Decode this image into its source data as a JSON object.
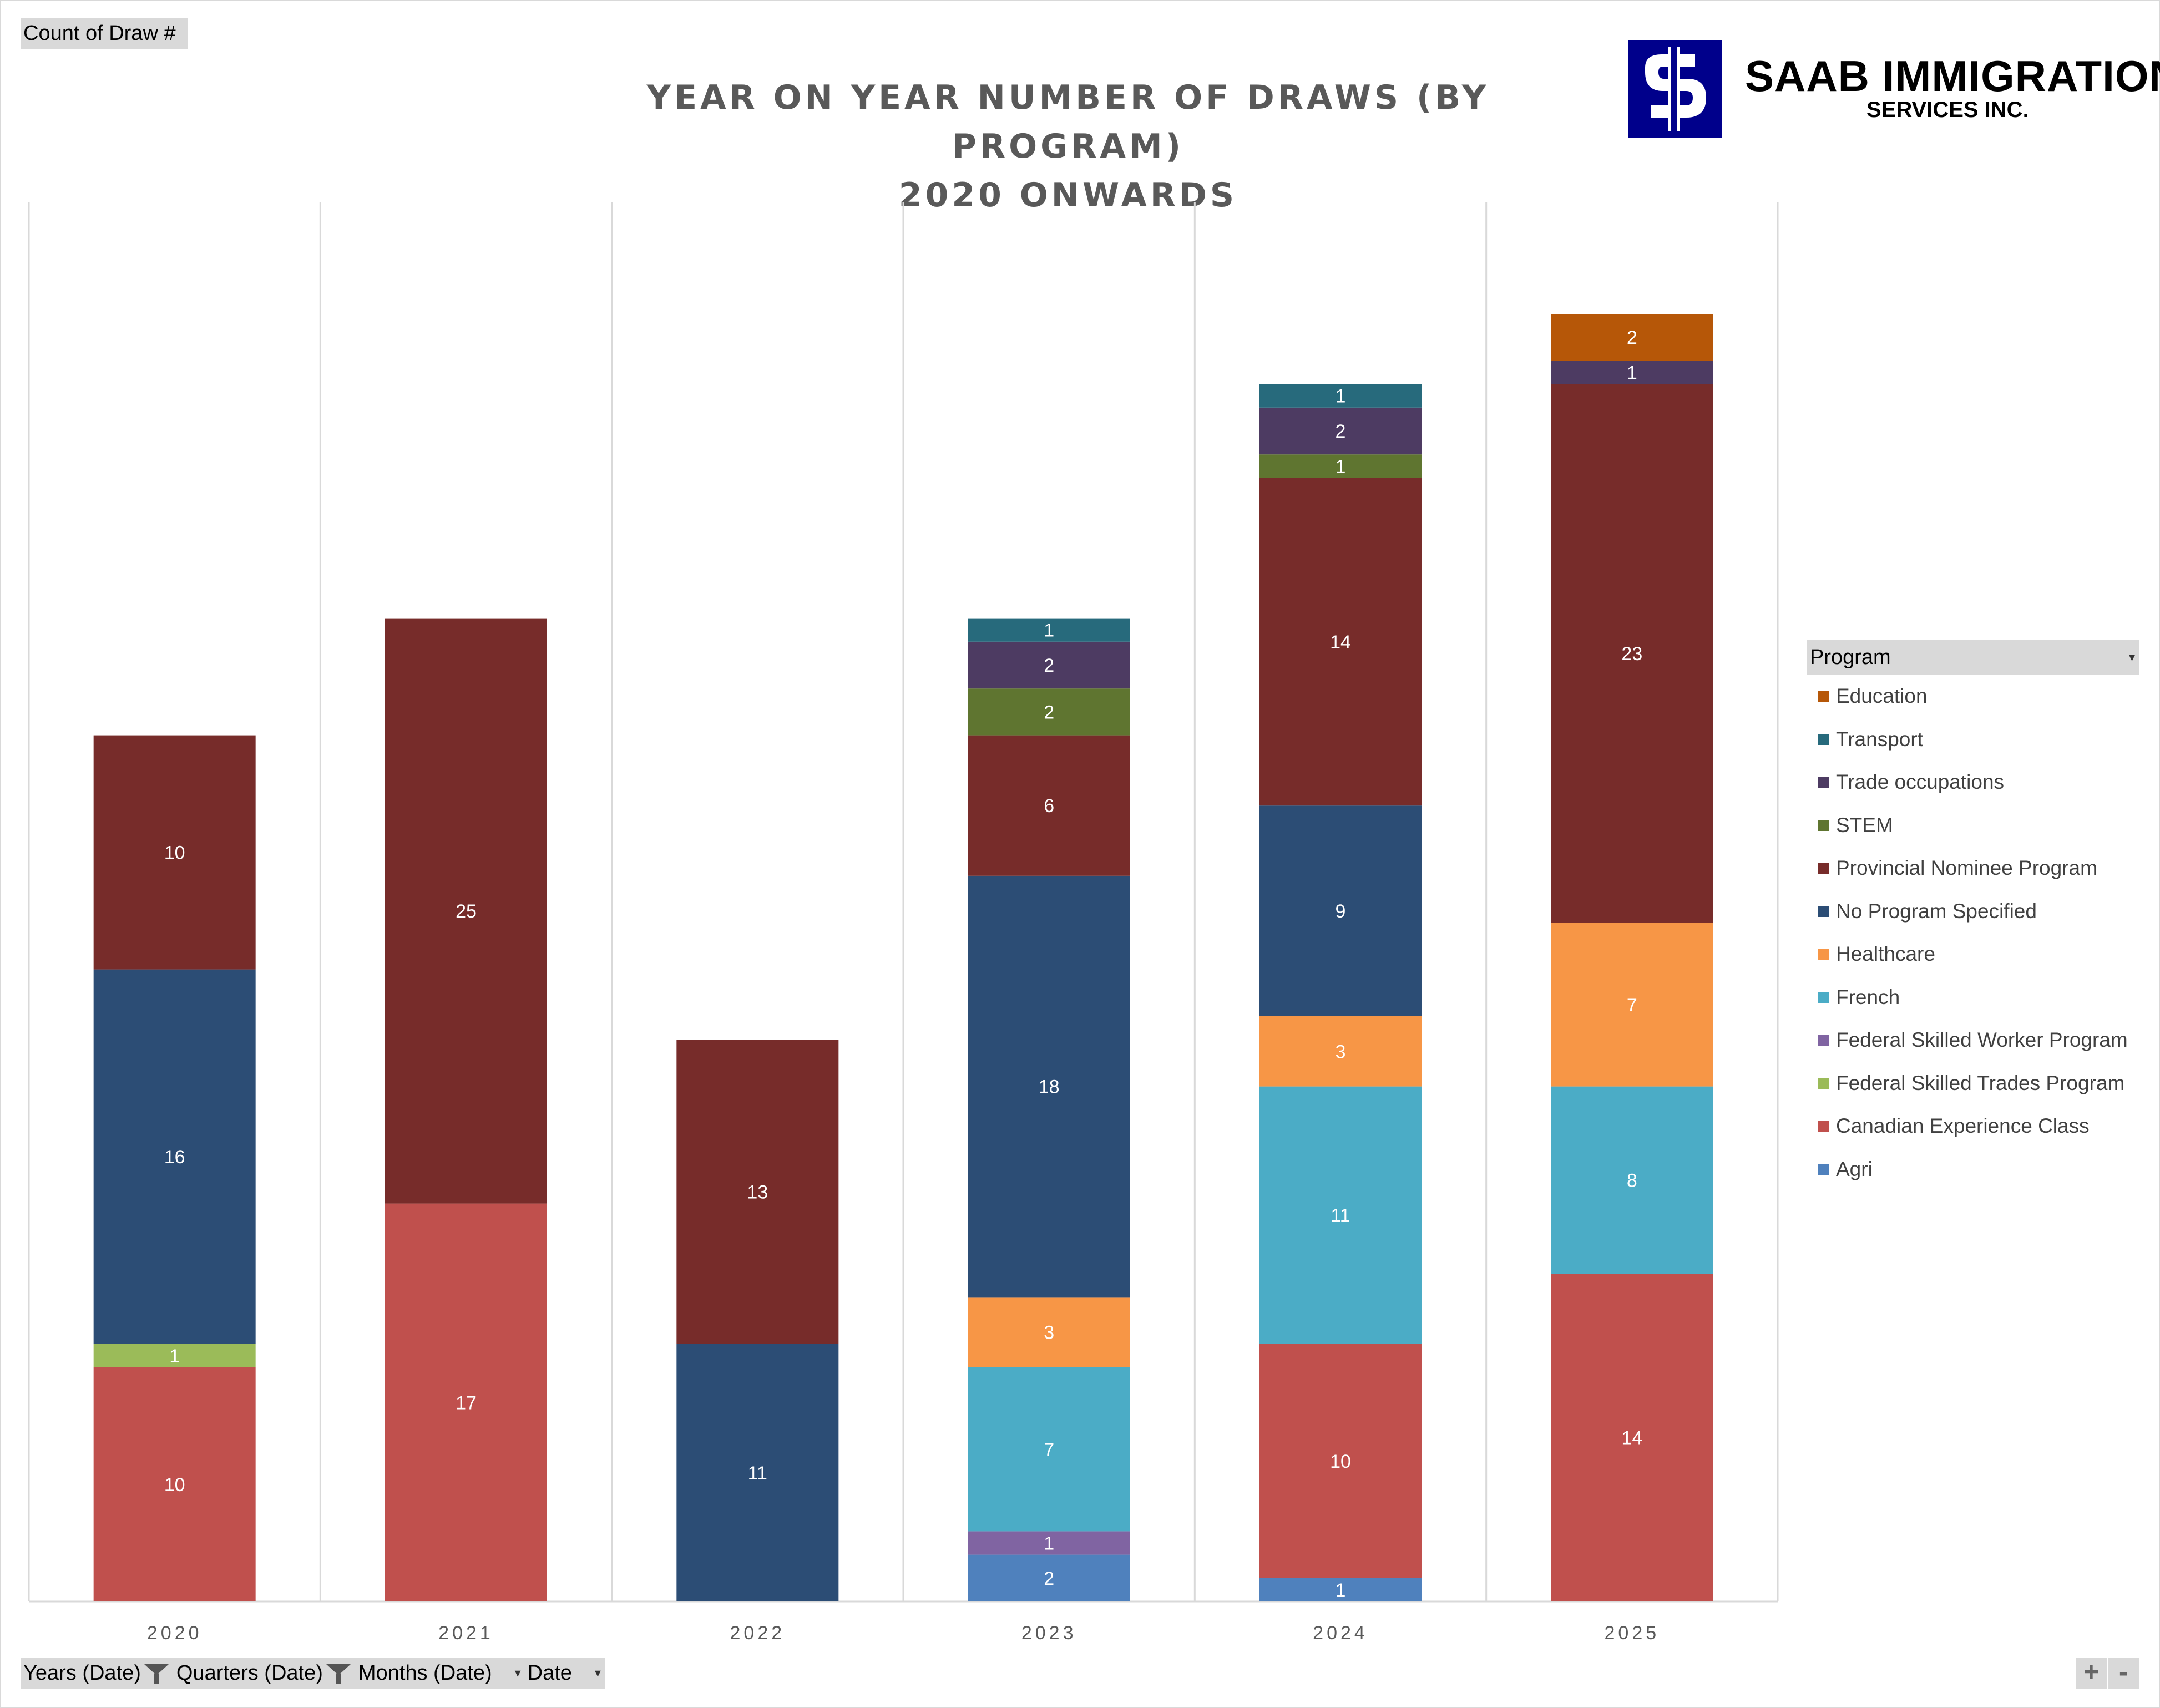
{
  "pivot": {
    "value_field": "Count of Draw #",
    "axis_fields": [
      "Years (Date)",
      "Quarters (Date)",
      "Months (Date)",
      "Date"
    ],
    "legend_field": "Program",
    "zoom_in": "+",
    "zoom_out": "-"
  },
  "logo": {
    "line1": "SAAB IMMIGRATION",
    "line2": "SERVICES INC.",
    "icon": "saab-logo-icon",
    "color": "#00008b"
  },
  "chart_data": {
    "type": "bar",
    "stacked": true,
    "title": "YEAR ON YEAR NUMBER OF DRAWS (BY PROGRAM)",
    "subtitle": "2020 ONWARDS",
    "xlabel": "",
    "ylabel": "",
    "ylim": [
      0,
      60
    ],
    "grid": "vertical separators",
    "legend_position": "right",
    "categories": [
      "2020",
      "2021",
      "2022",
      "2023",
      "2024",
      "2025"
    ],
    "series": [
      {
        "name": "Agri",
        "color": "#4f81bd",
        "values": [
          0,
          0,
          0,
          2,
          1,
          0
        ]
      },
      {
        "name": "Canadian Experience Class",
        "color": "#c0504d",
        "values": [
          10,
          17,
          0,
          0,
          10,
          14
        ]
      },
      {
        "name": "Federal Skilled Trades Program",
        "color": "#9bbb59",
        "values": [
          1,
          0,
          0,
          0,
          0,
          0
        ]
      },
      {
        "name": "Federal Skilled Worker Program",
        "color": "#8064a2",
        "values": [
          0,
          0,
          0,
          1,
          0,
          0
        ]
      },
      {
        "name": "French",
        "color": "#4bacc6",
        "values": [
          0,
          0,
          0,
          7,
          11,
          8
        ]
      },
      {
        "name": "Healthcare",
        "color": "#f79646",
        "values": [
          0,
          0,
          0,
          3,
          3,
          7
        ]
      },
      {
        "name": "No Program Specified",
        "color": "#2c4d75",
        "values": [
          16,
          0,
          11,
          18,
          9,
          0
        ]
      },
      {
        "name": "Provincial Nominee Program",
        "color": "#772c2a",
        "values": [
          10,
          25,
          13,
          6,
          14,
          23
        ]
      },
      {
        "name": "STEM",
        "color": "#5f7530",
        "values": [
          0,
          0,
          0,
          2,
          1,
          0
        ]
      },
      {
        "name": "Trade occupations",
        "color": "#4d3b62",
        "values": [
          0,
          0,
          0,
          2,
          2,
          1
        ]
      },
      {
        "name": "Transport",
        "color": "#276a7c",
        "values": [
          0,
          0,
          0,
          1,
          1,
          0
        ]
      },
      {
        "name": "Education",
        "color": "#b65708",
        "values": [
          0,
          0,
          0,
          0,
          0,
          2
        ]
      }
    ],
    "legend_order": [
      "Education",
      "Transport",
      "Trade occupations",
      "STEM",
      "Provincial Nominee Program",
      "No Program Specified",
      "Healthcare",
      "French",
      "Federal Skilled Worker Program",
      "Federal Skilled Trades Program",
      "Canadian Experience Class",
      "Agri"
    ]
  }
}
